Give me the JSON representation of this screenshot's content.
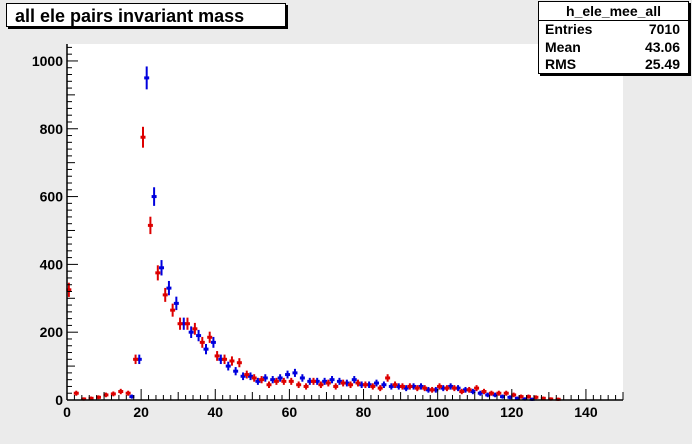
{
  "title": "all ele pairs invariant mass",
  "stats": {
    "name": "h_ele_mee_all",
    "rows": [
      {
        "label": "Entries",
        "value": "7010"
      },
      {
        "label": "Mean",
        "value": "43.06"
      },
      {
        "label": "RMS",
        "value": "25.49"
      }
    ]
  },
  "colors": {
    "blue": "#0000dd",
    "red": "#dd0000",
    "frame_bg": "#ebebeb"
  },
  "chart_data": {
    "type": "scatter",
    "title": "all ele pairs invariant mass",
    "xlim": [
      0,
      150
    ],
    "ylim": [
      0,
      1050
    ],
    "xticks": [
      0,
      20,
      40,
      60,
      80,
      100,
      120,
      140
    ],
    "yticks": [
      0,
      200,
      400,
      600,
      800,
      1000
    ],
    "xtick_labels": [
      "0",
      "20",
      "40",
      "60",
      "80",
      "100",
      "120",
      "140"
    ],
    "ytick_labels": [
      "0",
      "200",
      "400",
      "600",
      "800",
      "1000"
    ],
    "grid": false,
    "series": [
      {
        "color": "blue",
        "x": [
          17,
          19,
          21,
          23,
          25,
          27,
          29,
          31,
          33,
          35,
          37,
          39,
          41,
          43,
          45,
          47,
          49,
          51,
          53,
          55,
          57,
          59,
          61,
          63,
          65,
          67,
          69,
          71,
          73,
          75,
          77,
          79,
          81,
          83,
          85,
          87,
          89,
          91,
          93,
          95,
          97,
          99,
          101,
          103,
          105,
          107,
          109,
          111,
          113,
          115,
          117,
          119,
          121,
          123,
          125
        ],
        "y": [
          10,
          120,
          950,
          600,
          390,
          330,
          285,
          225,
          200,
          190,
          150,
          170,
          120,
          100,
          85,
          70,
          70,
          55,
          65,
          60,
          65,
          75,
          80,
          65,
          55,
          55,
          55,
          60,
          55,
          50,
          60,
          45,
          45,
          50,
          45,
          40,
          40,
          35,
          40,
          40,
          30,
          30,
          35,
          40,
          35,
          30,
          25,
          20,
          15,
          15,
          10,
          8,
          5,
          3,
          2
        ]
      },
      {
        "color": "red",
        "x": [
          0,
          2,
          4,
          6,
          8,
          10,
          12,
          14,
          16,
          18,
          20,
          22,
          24,
          26,
          28,
          30,
          32,
          34,
          36,
          38,
          40,
          42,
          44,
          46,
          48,
          50,
          52,
          54,
          56,
          58,
          60,
          62,
          64,
          66,
          68,
          70,
          72,
          74,
          76,
          78,
          80,
          82,
          84,
          86,
          88,
          90,
          92,
          94,
          96,
          98,
          100,
          102,
          104,
          106,
          108,
          110,
          112,
          114,
          116,
          118,
          120,
          122,
          124,
          126,
          128,
          130,
          132
        ],
        "y": [
          325,
          20,
          3,
          5,
          8,
          15,
          18,
          25,
          20,
          120,
          775,
          515,
          375,
          310,
          265,
          225,
          225,
          210,
          170,
          185,
          130,
          120,
          115,
          110,
          75,
          65,
          60,
          45,
          55,
          55,
          55,
          45,
          40,
          55,
          45,
          50,
          40,
          50,
          45,
          50,
          45,
          40,
          35,
          65,
          45,
          40,
          40,
          35,
          35,
          30,
          40,
          35,
          35,
          25,
          30,
          35,
          25,
          20,
          20,
          20,
          15,
          10,
          10,
          8,
          5,
          3,
          2
        ]
      }
    ]
  }
}
